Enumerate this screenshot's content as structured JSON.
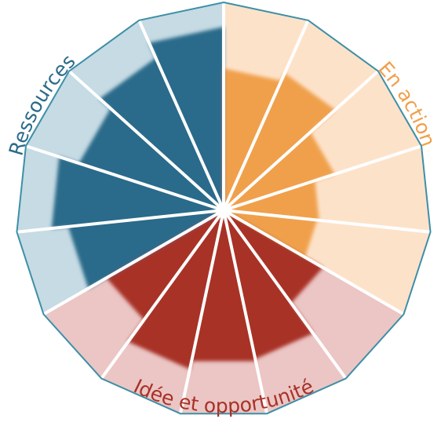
{
  "chart_data": {
    "type": "radar",
    "ylim": [
      0,
      100
    ],
    "outline_color": "#3d8fa6",
    "series": [
      {
        "name": "En action",
        "color": "#f0a04b",
        "background_color": "#fde2ca",
        "values": [
          68,
          72,
          56,
          46,
          45
        ]
      },
      {
        "name": "Idée et opportunité",
        "color": "#a83228",
        "background_color": "#ebc6c5",
        "values": [
          55,
          73,
          74,
          78,
          65
        ]
      },
      {
        "name": "Ressources",
        "color": "#2b6b8a",
        "background_color": "#c6dbe4",
        "values": [
          75,
          83,
          73,
          80,
          88
        ]
      }
    ]
  }
}
